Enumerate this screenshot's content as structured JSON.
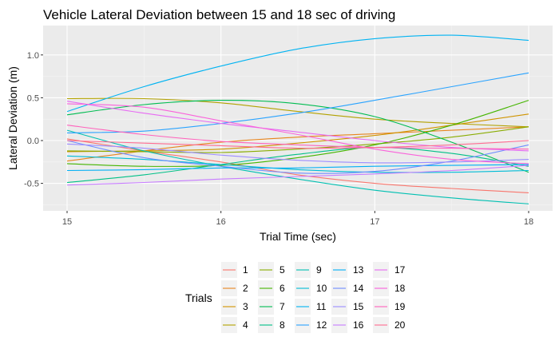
{
  "chart_data": {
    "type": "line",
    "title": "Vehicle Lateral Deviation between 15 and 18 sec of driving",
    "xlabel": "Trial Time (sec)",
    "ylabel": "Lateral Deviation (m)",
    "xlim": [
      15,
      18
    ],
    "ylim": [
      -0.8,
      1.3
    ],
    "xticks": [
      "15",
      "16",
      "17",
      "18"
    ],
    "yticks": [
      "-0.5",
      "0.0",
      "0.5",
      "1.0"
    ],
    "grid": true,
    "legend_title": "Trials",
    "legend_position": "bottom",
    "x": [
      15,
      15.5,
      16,
      16.5,
      17,
      17.5,
      18
    ],
    "series": [
      {
        "name": "1",
        "color": "#F8766D",
        "values": [
          0.02,
          -0.12,
          -0.25,
          -0.4,
          -0.5,
          -0.56,
          -0.61
        ]
      },
      {
        "name": "2",
        "color": "#E7851E",
        "values": [
          -0.24,
          -0.12,
          -0.02,
          0.04,
          0.08,
          0.12,
          0.16
        ]
      },
      {
        "name": "3",
        "color": "#D09400",
        "values": [
          -0.13,
          -0.12,
          -0.1,
          -0.03,
          0.06,
          0.18,
          0.31
        ]
      },
      {
        "name": "4",
        "color": "#B2A100",
        "values": [
          0.49,
          0.49,
          0.44,
          0.34,
          0.25,
          0.2,
          0.16
        ]
      },
      {
        "name": "5",
        "color": "#89AC00",
        "values": [
          -0.12,
          -0.13,
          -0.14,
          -0.1,
          -0.04,
          0.04,
          0.16
        ]
      },
      {
        "name": "6",
        "color": "#45B500",
        "values": [
          -0.27,
          -0.3,
          -0.29,
          -0.2,
          -0.05,
          0.18,
          0.47
        ]
      },
      {
        "name": "7",
        "color": "#00BC51",
        "values": [
          0.3,
          0.42,
          0.47,
          0.43,
          0.28,
          -0.02,
          -0.37
        ]
      },
      {
        "name": "8",
        "color": "#00C087",
        "values": [
          -0.49,
          -0.4,
          -0.28,
          -0.16,
          -0.08,
          -0.15,
          -0.3
        ]
      },
      {
        "name": "9",
        "color": "#00C0B2",
        "values": [
          0.12,
          -0.12,
          -0.3,
          -0.45,
          -0.58,
          -0.67,
          -0.74
        ]
      },
      {
        "name": "10",
        "color": "#00BCD6",
        "values": [
          -0.18,
          -0.22,
          -0.28,
          -0.34,
          -0.37,
          -0.37,
          -0.35
        ]
      },
      {
        "name": "11",
        "color": "#00B3F2",
        "values": [
          0.34,
          0.63,
          0.87,
          1.07,
          1.19,
          1.23,
          1.17
        ]
      },
      {
        "name": "12",
        "color": "#29A3FF",
        "values": [
          0.09,
          0.11,
          0.2,
          0.32,
          0.47,
          0.63,
          0.79
        ]
      },
      {
        "name": "13",
        "color": "#00AFF5",
        "values": [
          -0.35,
          -0.34,
          -0.32,
          -0.32,
          -0.3,
          -0.29,
          -0.28
        ]
      },
      {
        "name": "14",
        "color": "#6E8DFF",
        "values": [
          0.0,
          -0.2,
          -0.3,
          -0.38,
          -0.36,
          -0.24,
          -0.05
        ]
      },
      {
        "name": "15",
        "color": "#9C8DFF",
        "values": [
          -0.04,
          -0.09,
          -0.17,
          -0.23,
          -0.26,
          -0.25,
          -0.22
        ]
      },
      {
        "name": "16",
        "color": "#C77CFF",
        "values": [
          -0.52,
          -0.49,
          -0.45,
          -0.42,
          -0.39,
          -0.35,
          -0.29
        ]
      },
      {
        "name": "17",
        "color": "#E76BF3",
        "values": [
          0.46,
          0.32,
          0.2,
          0.1,
          0.0,
          -0.08,
          -0.12
        ]
      },
      {
        "name": "18",
        "color": "#FA62DB",
        "values": [
          0.43,
          0.39,
          0.23,
          0.07,
          -0.1,
          -0.22,
          -0.27
        ]
      },
      {
        "name": "19",
        "color": "#FF62BC",
        "values": [
          0.18,
          0.07,
          -0.01,
          -0.05,
          -0.08,
          -0.09,
          -0.1
        ]
      },
      {
        "name": "20",
        "color": "#FF6C91",
        "values": [
          0.0,
          -0.03,
          -0.06,
          -0.09,
          -0.08,
          -0.05,
          0.0
        ]
      }
    ]
  }
}
